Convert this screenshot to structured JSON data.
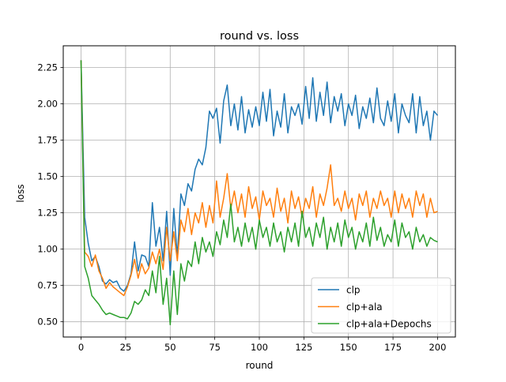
{
  "chart_data": {
    "type": "line",
    "title": "round vs. loss",
    "xlabel": "round",
    "ylabel": "loss",
    "xlim": [
      -10,
      210
    ],
    "ylim": [
      0.395,
      2.4
    ],
    "xticks": [
      0,
      25,
      50,
      75,
      100,
      125,
      150,
      175,
      200
    ],
    "xtick_labels": [
      "0",
      "25",
      "50",
      "75",
      "100",
      "125",
      "150",
      "175",
      "200"
    ],
    "yticks": [
      0.5,
      0.75,
      1.0,
      1.25,
      1.5,
      1.75,
      2.0,
      2.25
    ],
    "ytick_labels": [
      "0.50",
      "0.75",
      "1.00",
      "1.25",
      "1.50",
      "1.75",
      "2.00",
      "2.25"
    ],
    "grid": true,
    "legend_position": "lower-right",
    "series": [
      {
        "name": "clp",
        "color": "#1f77b4",
        "points": [
          [
            0,
            2.3
          ],
          [
            2,
            1.22
          ],
          [
            4,
            1.04
          ],
          [
            6,
            0.92
          ],
          [
            8,
            0.95
          ],
          [
            10,
            0.88
          ],
          [
            12,
            0.78
          ],
          [
            14,
            0.76
          ],
          [
            16,
            0.79
          ],
          [
            18,
            0.77
          ],
          [
            20,
            0.78
          ],
          [
            22,
            0.73
          ],
          [
            24,
            0.71
          ],
          [
            26,
            0.75
          ],
          [
            28,
            0.83
          ],
          [
            30,
            1.05
          ],
          [
            32,
            0.85
          ],
          [
            34,
            0.96
          ],
          [
            36,
            0.95
          ],
          [
            38,
            0.88
          ],
          [
            40,
            1.32
          ],
          [
            42,
            1.02
          ],
          [
            44,
            1.15
          ],
          [
            46,
            0.92
          ],
          [
            48,
            1.26
          ],
          [
            50,
            0.82
          ],
          [
            52,
            1.28
          ],
          [
            54,
            0.95
          ],
          [
            56,
            1.38
          ],
          [
            58,
            1.3
          ],
          [
            60,
            1.45
          ],
          [
            62,
            1.4
          ],
          [
            64,
            1.55
          ],
          [
            66,
            1.62
          ],
          [
            68,
            1.58
          ],
          [
            70,
            1.7
          ],
          [
            72,
            1.95
          ],
          [
            74,
            1.9
          ],
          [
            76,
            1.97
          ],
          [
            78,
            1.73
          ],
          [
            80,
            2.02
          ],
          [
            82,
            2.13
          ],
          [
            84,
            1.85
          ],
          [
            86,
            2.0
          ],
          [
            88,
            1.82
          ],
          [
            90,
            2.05
          ],
          [
            92,
            1.8
          ],
          [
            94,
            1.96
          ],
          [
            96,
            1.84
          ],
          [
            98,
            1.98
          ],
          [
            100,
            1.85
          ],
          [
            102,
            2.08
          ],
          [
            104,
            1.88
          ],
          [
            106,
            2.1
          ],
          [
            108,
            1.78
          ],
          [
            110,
            1.95
          ],
          [
            112,
            1.84
          ],
          [
            114,
            2.07
          ],
          [
            116,
            1.8
          ],
          [
            118,
            1.98
          ],
          [
            120,
            1.92
          ],
          [
            122,
            2.0
          ],
          [
            124,
            1.86
          ],
          [
            126,
            2.12
          ],
          [
            128,
            1.9
          ],
          [
            130,
            2.18
          ],
          [
            132,
            1.88
          ],
          [
            134,
            2.08
          ],
          [
            136,
            1.92
          ],
          [
            138,
            2.15
          ],
          [
            140,
            1.87
          ],
          [
            142,
            2.05
          ],
          [
            144,
            1.95
          ],
          [
            146,
            2.07
          ],
          [
            148,
            1.85
          ],
          [
            150,
            2.0
          ],
          [
            152,
            1.92
          ],
          [
            154,
            2.06
          ],
          [
            156,
            1.83
          ],
          [
            158,
            1.98
          ],
          [
            160,
            1.9
          ],
          [
            162,
            2.04
          ],
          [
            164,
            1.87
          ],
          [
            166,
            2.11
          ],
          [
            168,
            1.9
          ],
          [
            170,
            1.85
          ],
          [
            172,
            2.02
          ],
          [
            174,
            1.88
          ],
          [
            176,
            2.07
          ],
          [
            178,
            1.8
          ],
          [
            180,
            2.0
          ],
          [
            182,
            1.92
          ],
          [
            184,
            1.87
          ],
          [
            186,
            2.07
          ],
          [
            188,
            1.8
          ],
          [
            190,
            2.05
          ],
          [
            192,
            1.85
          ],
          [
            194,
            1.95
          ],
          [
            196,
            1.75
          ],
          [
            198,
            1.95
          ],
          [
            200,
            1.92
          ]
        ]
      },
      {
        "name": "clp+ala",
        "color": "#ff7f0e",
        "points": [
          [
            0,
            2.3
          ],
          [
            2,
            0.98
          ],
          [
            4,
            0.95
          ],
          [
            6,
            0.88
          ],
          [
            8,
            0.96
          ],
          [
            10,
            0.85
          ],
          [
            12,
            0.8
          ],
          [
            14,
            0.73
          ],
          [
            16,
            0.77
          ],
          [
            18,
            0.74
          ],
          [
            20,
            0.72
          ],
          [
            22,
            0.7
          ],
          [
            24,
            0.68
          ],
          [
            26,
            0.74
          ],
          [
            28,
            0.82
          ],
          [
            30,
            0.93
          ],
          [
            32,
            0.8
          ],
          [
            34,
            0.9
          ],
          [
            36,
            0.83
          ],
          [
            38,
            0.87
          ],
          [
            40,
            0.98
          ],
          [
            42,
            0.9
          ],
          [
            44,
            1.0
          ],
          [
            46,
            0.86
          ],
          [
            48,
            1.15
          ],
          [
            50,
            0.92
          ],
          [
            52,
            1.12
          ],
          [
            54,
            0.92
          ],
          [
            56,
            1.2
          ],
          [
            58,
            1.12
          ],
          [
            60,
            1.28
          ],
          [
            62,
            1.1
          ],
          [
            64,
            1.25
          ],
          [
            66,
            1.18
          ],
          [
            68,
            1.32
          ],
          [
            70,
            1.15
          ],
          [
            72,
            1.3
          ],
          [
            74,
            1.18
          ],
          [
            76,
            1.47
          ],
          [
            78,
            1.22
          ],
          [
            80,
            1.35
          ],
          [
            82,
            1.52
          ],
          [
            84,
            1.28
          ],
          [
            86,
            1.4
          ],
          [
            88,
            1.25
          ],
          [
            90,
            1.38
          ],
          [
            92,
            1.22
          ],
          [
            94,
            1.43
          ],
          [
            96,
            1.28
          ],
          [
            98,
            1.36
          ],
          [
            100,
            1.2
          ],
          [
            102,
            1.4
          ],
          [
            104,
            1.3
          ],
          [
            106,
            1.35
          ],
          [
            108,
            1.22
          ],
          [
            110,
            1.42
          ],
          [
            112,
            1.26
          ],
          [
            114,
            1.35
          ],
          [
            116,
            1.18
          ],
          [
            118,
            1.4
          ],
          [
            120,
            1.28
          ],
          [
            122,
            1.36
          ],
          [
            124,
            1.22
          ],
          [
            126,
            1.35
          ],
          [
            128,
            1.28
          ],
          [
            130,
            1.43
          ],
          [
            132,
            1.22
          ],
          [
            134,
            1.38
          ],
          [
            136,
            1.3
          ],
          [
            138,
            1.42
          ],
          [
            140,
            1.58
          ],
          [
            142,
            1.3
          ],
          [
            144,
            1.35
          ],
          [
            146,
            1.26
          ],
          [
            148,
            1.4
          ],
          [
            150,
            1.28
          ],
          [
            152,
            1.35
          ],
          [
            154,
            1.2
          ],
          [
            156,
            1.38
          ],
          [
            158,
            1.3
          ],
          [
            160,
            1.4
          ],
          [
            162,
            1.22
          ],
          [
            164,
            1.35
          ],
          [
            166,
            1.28
          ],
          [
            168,
            1.4
          ],
          [
            170,
            1.3
          ],
          [
            172,
            1.35
          ],
          [
            174,
            1.22
          ],
          [
            176,
            1.4
          ],
          [
            178,
            1.25
          ],
          [
            180,
            1.38
          ],
          [
            182,
            1.28
          ],
          [
            184,
            1.35
          ],
          [
            186,
            1.22
          ],
          [
            188,
            1.4
          ],
          [
            190,
            1.3
          ],
          [
            192,
            1.38
          ],
          [
            194,
            1.22
          ],
          [
            196,
            1.35
          ],
          [
            198,
            1.25
          ],
          [
            200,
            1.26
          ]
        ]
      },
      {
        "name": "clp+ala+Depochs",
        "color": "#2ca02c",
        "points": [
          [
            0,
            2.3
          ],
          [
            2,
            0.88
          ],
          [
            4,
            0.8
          ],
          [
            6,
            0.68
          ],
          [
            8,
            0.65
          ],
          [
            10,
            0.62
          ],
          [
            12,
            0.58
          ],
          [
            14,
            0.55
          ],
          [
            16,
            0.56
          ],
          [
            18,
            0.55
          ],
          [
            20,
            0.54
          ],
          [
            22,
            0.53
          ],
          [
            24,
            0.53
          ],
          [
            26,
            0.52
          ],
          [
            28,
            0.56
          ],
          [
            30,
            0.64
          ],
          [
            32,
            0.62
          ],
          [
            34,
            0.65
          ],
          [
            36,
            0.72
          ],
          [
            38,
            0.68
          ],
          [
            40,
            0.85
          ],
          [
            42,
            0.7
          ],
          [
            44,
            0.95
          ],
          [
            46,
            0.62
          ],
          [
            48,
            0.8
          ],
          [
            50,
            0.48
          ],
          [
            52,
            0.85
          ],
          [
            54,
            0.55
          ],
          [
            56,
            0.9
          ],
          [
            58,
            0.78
          ],
          [
            60,
            0.92
          ],
          [
            62,
            0.88
          ],
          [
            64,
            1.05
          ],
          [
            66,
            0.9
          ],
          [
            68,
            1.08
          ],
          [
            70,
            0.98
          ],
          [
            72,
            1.05
          ],
          [
            74,
            0.95
          ],
          [
            76,
            1.12
          ],
          [
            78,
            1.03
          ],
          [
            80,
            1.2
          ],
          [
            82,
            1.08
          ],
          [
            84,
            1.31
          ],
          [
            86,
            1.05
          ],
          [
            88,
            1.15
          ],
          [
            90,
            1.02
          ],
          [
            92,
            1.18
          ],
          [
            94,
            1.05
          ],
          [
            96,
            1.15
          ],
          [
            98,
            1.0
          ],
          [
            100,
            1.2
          ],
          [
            102,
            1.08
          ],
          [
            104,
            1.15
          ],
          [
            106,
            1.02
          ],
          [
            108,
            1.18
          ],
          [
            110,
            1.05
          ],
          [
            112,
            1.12
          ],
          [
            114,
            0.98
          ],
          [
            116,
            1.15
          ],
          [
            118,
            1.05
          ],
          [
            120,
            1.18
          ],
          [
            122,
            1.02
          ],
          [
            124,
            1.26
          ],
          [
            126,
            1.08
          ],
          [
            128,
            1.15
          ],
          [
            130,
            1.02
          ],
          [
            132,
            1.18
          ],
          [
            134,
            1.08
          ],
          [
            136,
            1.22
          ],
          [
            138,
            1.0
          ],
          [
            140,
            1.15
          ],
          [
            142,
            1.05
          ],
          [
            144,
            1.18
          ],
          [
            146,
            1.02
          ],
          [
            148,
            1.2
          ],
          [
            150,
            1.08
          ],
          [
            152,
            1.15
          ],
          [
            154,
            1.0
          ],
          [
            156,
            1.12
          ],
          [
            158,
            1.05
          ],
          [
            160,
            1.18
          ],
          [
            162,
            1.02
          ],
          [
            164,
            1.22
          ],
          [
            166,
            1.06
          ],
          [
            168,
            1.15
          ],
          [
            170,
            1.02
          ],
          [
            172,
            1.1
          ],
          [
            174,
            1.05
          ],
          [
            176,
            1.2
          ],
          [
            178,
            1.02
          ],
          [
            180,
            1.18
          ],
          [
            182,
            1.08
          ],
          [
            184,
            1.12
          ],
          [
            186,
            1.0
          ],
          [
            188,
            1.15
          ],
          [
            190,
            1.05
          ],
          [
            192,
            1.1
          ],
          [
            194,
            1.02
          ],
          [
            196,
            1.08
          ],
          [
            198,
            1.06
          ],
          [
            200,
            1.05
          ]
        ]
      }
    ]
  }
}
